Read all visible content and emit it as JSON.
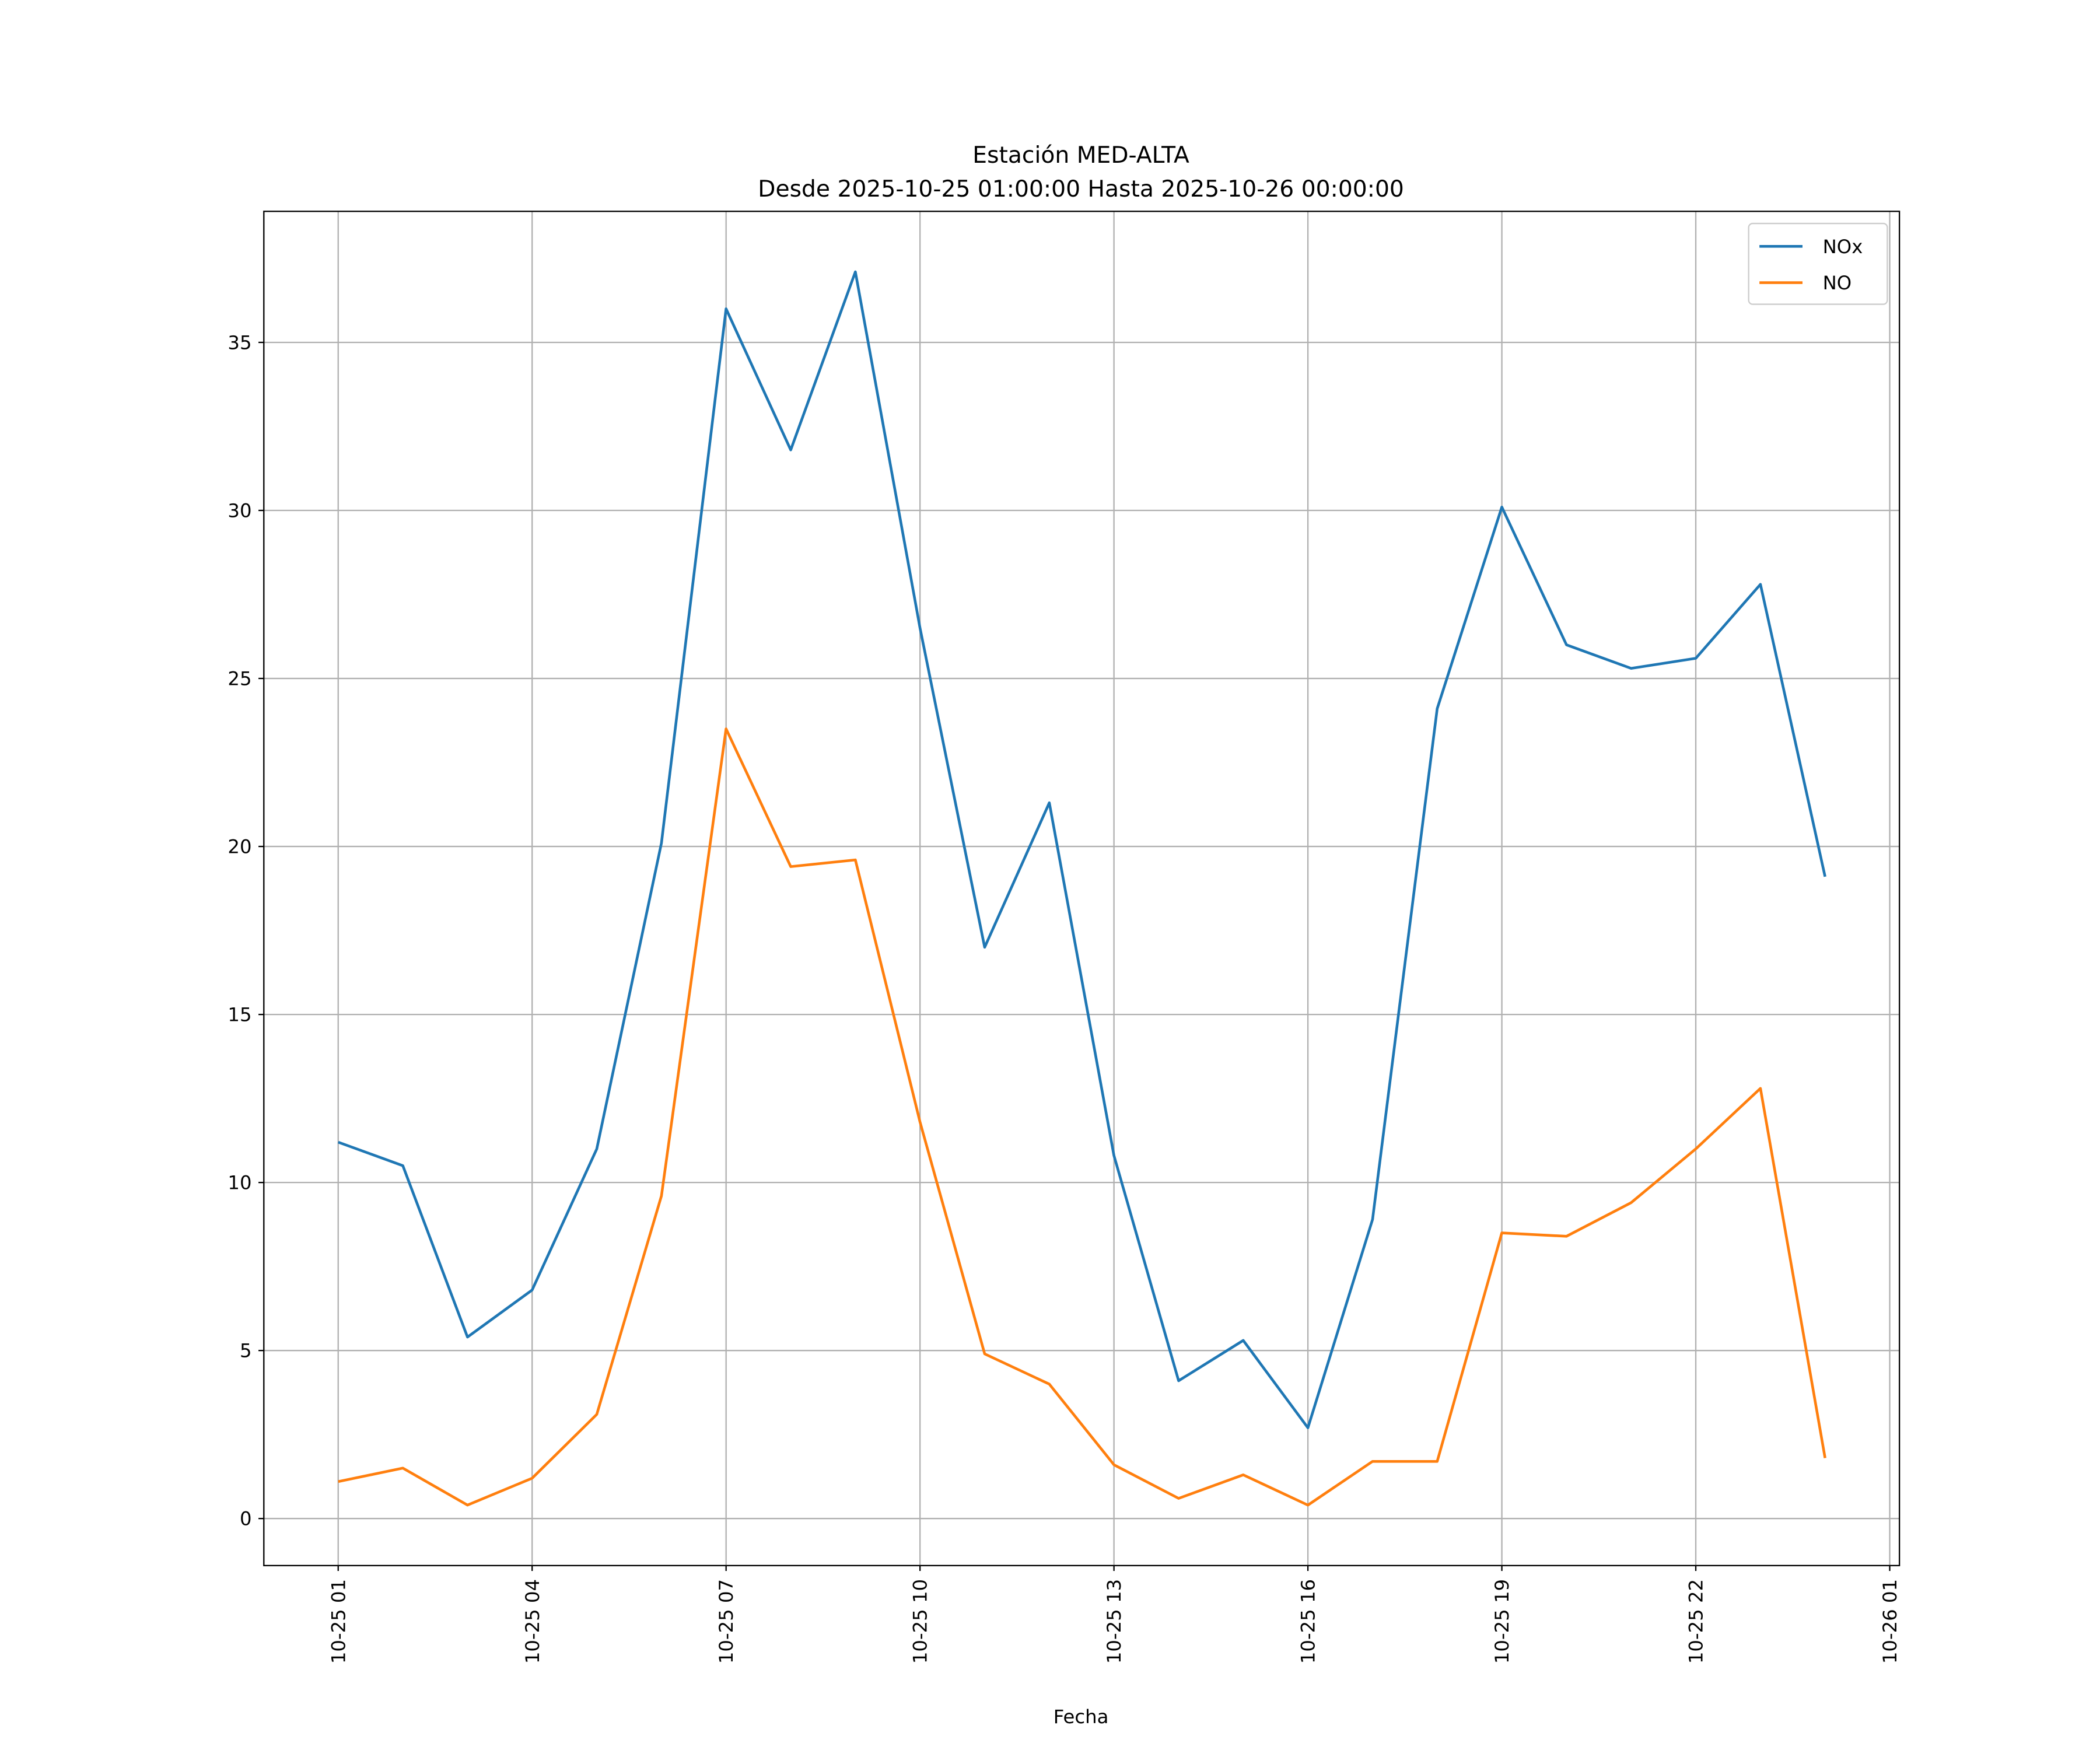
{
  "chart_data": {
    "type": "line",
    "title": "Estación MED-ALTA",
    "subtitle": "Desde 2025-10-25 01:00:00 Hasta 2025-10-26 00:00:00",
    "xlabel": "Fecha",
    "ylabel": "",
    "x": [
      "2025-10-25 01:00",
      "2025-10-25 02:00",
      "2025-10-25 03:00",
      "2025-10-25 04:00",
      "2025-10-25 05:00",
      "2025-10-25 06:00",
      "2025-10-25 07:00",
      "2025-10-25 08:00",
      "2025-10-25 09:00",
      "2025-10-25 10:00",
      "2025-10-25 11:00",
      "2025-10-25 12:00",
      "2025-10-25 13:00",
      "2025-10-25 14:00",
      "2025-10-25 15:00",
      "2025-10-25 16:00",
      "2025-10-25 17:00",
      "2025-10-25 18:00",
      "2025-10-25 19:00",
      "2025-10-25 20:00",
      "2025-10-25 21:00",
      "2025-10-25 22:00",
      "2025-10-25 23:00",
      "2025-10-26 00:00"
    ],
    "series": [
      {
        "name": "NOx",
        "color": "#1f77b4",
        "values": [
          11.2,
          10.5,
          5.4,
          6.8,
          11.0,
          20.1,
          36.0,
          31.8,
          37.1,
          26.5,
          17.0,
          21.3,
          10.8,
          4.1,
          5.3,
          2.7,
          8.9,
          24.1,
          30.1,
          26.0,
          25.3,
          25.6,
          27.8,
          19.1
        ]
      },
      {
        "name": "NO",
        "color": "#ff7f0e",
        "values": [
          1.1,
          1.5,
          0.4,
          1.2,
          3.1,
          9.6,
          23.5,
          19.4,
          19.6,
          11.8,
          4.9,
          4.0,
          1.6,
          0.6,
          1.3,
          0.4,
          1.7,
          1.7,
          8.5,
          8.4,
          9.4,
          11.0,
          12.8,
          1.8
        ]
      }
    ],
    "xticks": [
      "10-25 01",
      "10-25 04",
      "10-25 07",
      "10-25 10",
      "10-25 13",
      "10-25 16",
      "10-25 19",
      "10-25 22",
      "10-26 01"
    ],
    "yticks": [
      "0",
      "5",
      "10",
      "15",
      "20",
      "25",
      "30",
      "35"
    ],
    "ylim": [
      -1.4,
      38.9
    ],
    "xlim": [
      "2025-10-24 23:51",
      "2025-10-26 01:09"
    ],
    "grid": true,
    "legend": "top-right"
  }
}
